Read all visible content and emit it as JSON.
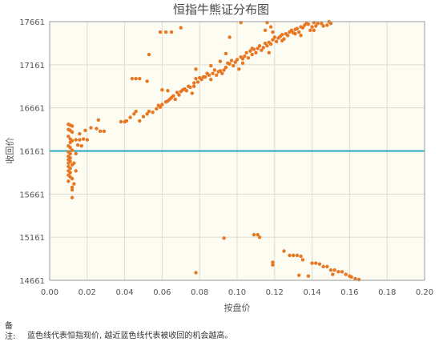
{
  "chart_data": {
    "type": "scatter",
    "title": "恒指牛熊证分布图",
    "xlabel": "按盘价",
    "ylabel": "收回价",
    "xlim": [
      0.0,
      0.2
    ],
    "ylim": [
      14661,
      17661
    ],
    "xticks": [
      "0.00",
      "0.02",
      "0.04",
      "0.06",
      "0.08",
      "0.10",
      "0.12",
      "0.14",
      "0.16",
      "0.18",
      "0.20"
    ],
    "yticks": [
      "14661",
      "15161",
      "15661",
      "16161",
      "16661",
      "17161",
      "17661"
    ],
    "grid": true,
    "reference_line": {
      "y": 16161,
      "color": "#2aa7c0"
    },
    "point_color": "#e87722",
    "plot_bg": "#fdfcf2",
    "points": [
      [
        0.01,
        16470
      ],
      [
        0.011,
        16460
      ],
      [
        0.012,
        16450
      ],
      [
        0.01,
        16410
      ],
      [
        0.011,
        16400
      ],
      [
        0.012,
        16380
      ],
      [
        0.01,
        16330
      ],
      [
        0.011,
        16300
      ],
      [
        0.012,
        16280
      ],
      [
        0.011,
        16260
      ],
      [
        0.01,
        16220
      ],
      [
        0.011,
        16200
      ],
      [
        0.012,
        16170
      ],
      [
        0.01,
        16150
      ],
      [
        0.011,
        16130
      ],
      [
        0.01,
        16100
      ],
      [
        0.011,
        16080
      ],
      [
        0.01,
        16060
      ],
      [
        0.011,
        16040
      ],
      [
        0.01,
        16020
      ],
      [
        0.012,
        16000
      ],
      [
        0.01,
        15980
      ],
      [
        0.011,
        15960
      ],
      [
        0.01,
        15930
      ],
      [
        0.011,
        15910
      ],
      [
        0.01,
        15880
      ],
      [
        0.011,
        15860
      ],
      [
        0.012,
        15840
      ],
      [
        0.01,
        15810
      ],
      [
        0.013,
        15780
      ],
      [
        0.012,
        15740
      ],
      [
        0.012,
        15710
      ],
      [
        0.012,
        15620
      ],
      [
        0.014,
        15930
      ],
      [
        0.013,
        16020
      ],
      [
        0.014,
        16130
      ],
      [
        0.014,
        16290
      ],
      [
        0.016,
        16290
      ],
      [
        0.018,
        16300
      ],
      [
        0.02,
        16290
      ],
      [
        0.015,
        16230
      ],
      [
        0.017,
        16220
      ],
      [
        0.016,
        16360
      ],
      [
        0.019,
        16400
      ],
      [
        0.022,
        16430
      ],
      [
        0.025,
        16420
      ],
      [
        0.026,
        16520
      ],
      [
        0.027,
        16390
      ],
      [
        0.029,
        16390
      ],
      [
        0.038,
        16500
      ],
      [
        0.04,
        16500
      ],
      [
        0.041,
        16510
      ],
      [
        0.043,
        16550
      ],
      [
        0.045,
        16590
      ],
      [
        0.046,
        16620
      ],
      [
        0.048,
        16510
      ],
      [
        0.05,
        16560
      ],
      [
        0.052,
        16590
      ],
      [
        0.053,
        16620
      ],
      [
        0.055,
        16610
      ],
      [
        0.057,
        16650
      ],
      [
        0.058,
        16690
      ],
      [
        0.059,
        16670
      ],
      [
        0.06,
        16700
      ],
      [
        0.062,
        16730
      ],
      [
        0.063,
        16740
      ],
      [
        0.064,
        16760
      ],
      [
        0.065,
        16780
      ],
      [
        0.066,
        16800
      ],
      [
        0.067,
        16760
      ],
      [
        0.068,
        16840
      ],
      [
        0.069,
        16810
      ],
      [
        0.07,
        16850
      ],
      [
        0.071,
        16870
      ],
      [
        0.072,
        16880
      ],
      [
        0.073,
        16860
      ],
      [
        0.074,
        16910
      ],
      [
        0.075,
        16900
      ],
      [
        0.076,
        16830
      ],
      [
        0.077,
        16950
      ],
      [
        0.078,
        17000
      ],
      [
        0.079,
        16960
      ],
      [
        0.08,
        17010
      ],
      [
        0.081,
        16990
      ],
      [
        0.083,
        17020
      ],
      [
        0.084,
        17060
      ],
      [
        0.085,
        17040
      ],
      [
        0.086,
        16990
      ],
      [
        0.087,
        17060
      ],
      [
        0.088,
        17100
      ],
      [
        0.089,
        17040
      ],
      [
        0.09,
        17080
      ],
      [
        0.091,
        17090
      ],
      [
        0.092,
        17060
      ],
      [
        0.093,
        17100
      ],
      [
        0.094,
        17130
      ],
      [
        0.095,
        17180
      ],
      [
        0.096,
        17170
      ],
      [
        0.097,
        17210
      ],
      [
        0.098,
        17150
      ],
      [
        0.099,
        17190
      ],
      [
        0.1,
        17220
      ],
      [
        0.101,
        17110
      ],
      [
        0.102,
        17250
      ],
      [
        0.103,
        17230
      ],
      [
        0.104,
        17260
      ],
      [
        0.105,
        17300
      ],
      [
        0.106,
        17240
      ],
      [
        0.107,
        17320
      ],
      [
        0.108,
        17280
      ],
      [
        0.109,
        17340
      ],
      [
        0.11,
        17300
      ],
      [
        0.111,
        17350
      ],
      [
        0.112,
        17380
      ],
      [
        0.113,
        17330
      ],
      [
        0.114,
        17360
      ],
      [
        0.115,
        17410
      ],
      [
        0.116,
        17380
      ],
      [
        0.117,
        17420
      ],
      [
        0.118,
        17400
      ],
      [
        0.119,
        17450
      ],
      [
        0.12,
        17480
      ],
      [
        0.121,
        17430
      ],
      [
        0.122,
        17470
      ],
      [
        0.123,
        17490
      ],
      [
        0.124,
        17510
      ],
      [
        0.125,
        17460
      ],
      [
        0.126,
        17520
      ],
      [
        0.127,
        17500
      ],
      [
        0.128,
        17540
      ],
      [
        0.129,
        17560
      ],
      [
        0.13,
        17530
      ],
      [
        0.131,
        17570
      ],
      [
        0.132,
        17580
      ],
      [
        0.133,
        17540
      ],
      [
        0.134,
        17600
      ],
      [
        0.135,
        17590
      ],
      [
        0.136,
        17620
      ],
      [
        0.137,
        17640
      ],
      [
        0.138,
        17630
      ],
      [
        0.139,
        17560
      ],
      [
        0.14,
        17600
      ],
      [
        0.141,
        17650
      ],
      [
        0.142,
        17610
      ],
      [
        0.143,
        17640
      ],
      [
        0.145,
        17640
      ],
      [
        0.146,
        17610
      ],
      [
        0.148,
        17620
      ],
      [
        0.149,
        17660
      ],
      [
        0.15,
        17640
      ],
      [
        0.102,
        17650
      ],
      [
        0.116,
        17650
      ],
      [
        0.118,
        17600
      ],
      [
        0.119,
        17540
      ],
      [
        0.115,
        17560
      ],
      [
        0.096,
        17480
      ],
      [
        0.059,
        17540
      ],
      [
        0.062,
        17540
      ],
      [
        0.065,
        17540
      ],
      [
        0.07,
        17590
      ],
      [
        0.053,
        17280
      ],
      [
        0.044,
        17000
      ],
      [
        0.046,
        17000
      ],
      [
        0.048,
        17000
      ],
      [
        0.052,
        16970
      ],
      [
        0.06,
        16870
      ],
      [
        0.063,
        16860
      ],
      [
        0.082,
        17020
      ],
      [
        0.086,
        17150
      ],
      [
        0.078,
        17110
      ],
      [
        0.077,
        16910
      ],
      [
        0.091,
        17200
      ],
      [
        0.094,
        17290
      ],
      [
        0.108,
        17350
      ],
      [
        0.141,
        17560
      ],
      [
        0.134,
        17500
      ],
      [
        0.131,
        17520
      ],
      [
        0.124,
        17440
      ],
      [
        0.117,
        17300
      ],
      [
        0.103,
        17180
      ],
      [
        0.093,
        15150
      ],
      [
        0.109,
        15190
      ],
      [
        0.111,
        15190
      ],
      [
        0.112,
        15160
      ],
      [
        0.125,
        15000
      ],
      [
        0.128,
        14950
      ],
      [
        0.13,
        14950
      ],
      [
        0.132,
        14950
      ],
      [
        0.134,
        14940
      ],
      [
        0.135,
        14900
      ],
      [
        0.119,
        14870
      ],
      [
        0.119,
        14840
      ],
      [
        0.14,
        14860
      ],
      [
        0.142,
        14860
      ],
      [
        0.144,
        14850
      ],
      [
        0.146,
        14820
      ],
      [
        0.148,
        14820
      ],
      [
        0.15,
        14780
      ],
      [
        0.152,
        14780
      ],
      [
        0.154,
        14760
      ],
      [
        0.156,
        14760
      ],
      [
        0.158,
        14730
      ],
      [
        0.16,
        14710
      ],
      [
        0.161,
        14700
      ],
      [
        0.163,
        14680
      ],
      [
        0.165,
        14670
      ],
      [
        0.078,
        14750
      ],
      [
        0.133,
        14720
      ],
      [
        0.138,
        14710
      ],
      [
        0.151,
        14730
      ]
    ]
  },
  "note": {
    "label": "备注:",
    "text": "蓝色线代表恒指现价, 越近蓝色线代表被收回的机会越高。"
  }
}
